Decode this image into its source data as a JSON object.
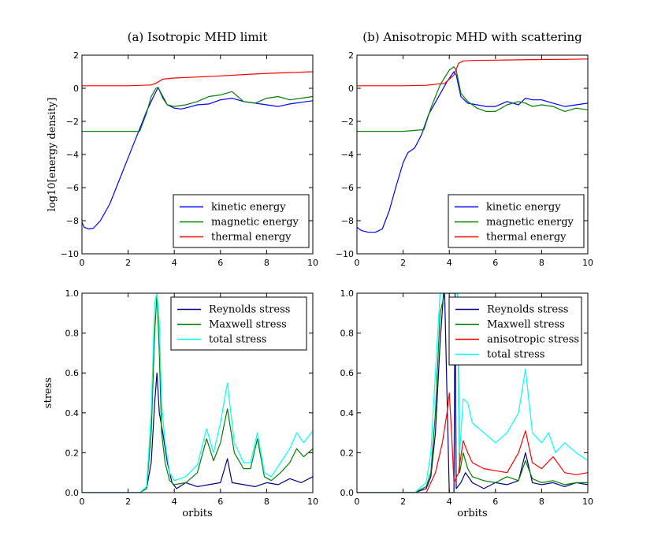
{
  "chart_data": [
    {
      "type": "line",
      "title": "(a) Isotropic MHD limit",
      "xlabel": "",
      "ylabel": "log10[energy density]",
      "xlim": [
        0,
        10
      ],
      "ylim": [
        -10,
        2
      ],
      "xticks": [
        "0",
        "2",
        "4",
        "6",
        "8",
        "10"
      ],
      "yticks": [
        "−10",
        "−8",
        "−6",
        "−4",
        "−2",
        "0",
        "2"
      ],
      "legend_position": "lower-right",
      "series": [
        {
          "name": "kinetic energy",
          "color": "#0000ff",
          "x": [
            0,
            0.1,
            0.3,
            0.5,
            0.8,
            1.2,
            1.6,
            2.0,
            2.4,
            2.8,
            3.1,
            3.3,
            3.5,
            3.7,
            4.0,
            4.3,
            4.6,
            5.0,
            5.5,
            6.0,
            6.5,
            7.0,
            7.5,
            8.0,
            8.5,
            9.0,
            9.5,
            10.0
          ],
          "y": [
            -8.1,
            -8.4,
            -8.5,
            -8.45,
            -8.0,
            -7.0,
            -5.6,
            -4.2,
            -2.8,
            -1.4,
            -0.5,
            0.05,
            -0.5,
            -1.0,
            -1.2,
            -1.25,
            -1.15,
            -1.0,
            -0.95,
            -0.7,
            -0.6,
            -0.8,
            -0.9,
            -1.0,
            -1.1,
            -0.95,
            -0.85,
            -0.75
          ]
        },
        {
          "name": "magnetic energy",
          "color": "#008000",
          "x": [
            0,
            1.0,
            2.0,
            2.5,
            2.8,
            3.0,
            3.2,
            3.3,
            3.5,
            3.7,
            4.0,
            4.5,
            5.0,
            5.5,
            6.0,
            6.5,
            7.0,
            7.5,
            8.0,
            8.5,
            9.0,
            9.5,
            10.0
          ],
          "y": [
            -2.6,
            -2.6,
            -2.6,
            -2.6,
            -1.5,
            -0.5,
            0.0,
            0.05,
            -0.6,
            -1.0,
            -1.1,
            -1.0,
            -0.8,
            -0.5,
            -0.4,
            -0.2,
            -0.8,
            -0.9,
            -0.6,
            -0.5,
            -0.7,
            -0.6,
            -0.5
          ]
        },
        {
          "name": "thermal energy",
          "color": "#ff0000",
          "x": [
            0,
            1.0,
            2.0,
            3.0,
            3.2,
            3.5,
            4.0,
            5.0,
            6.0,
            7.0,
            8.0,
            9.0,
            10.0
          ],
          "y": [
            0.15,
            0.15,
            0.15,
            0.2,
            0.3,
            0.55,
            0.62,
            0.68,
            0.75,
            0.83,
            0.9,
            0.95,
            1.0
          ]
        }
      ]
    },
    {
      "type": "line",
      "title": "(b) Anisotropic MHD with scattering",
      "xlabel": "",
      "ylabel": "",
      "xlim": [
        0,
        10
      ],
      "ylim": [
        -10,
        2
      ],
      "xticks": [
        "0",
        "2",
        "4",
        "6",
        "8",
        "10"
      ],
      "yticks": [
        "−10",
        "−8",
        "−6",
        "−4",
        "−2",
        "0",
        "2"
      ],
      "legend_position": "lower-right",
      "series": [
        {
          "name": "kinetic energy",
          "color": "#0000ff",
          "x": [
            0,
            0.2,
            0.5,
            0.8,
            1.1,
            1.4,
            1.7,
            2.0,
            2.2,
            2.5,
            2.8,
            3.1,
            3.5,
            3.9,
            4.2,
            4.3,
            4.5,
            4.8,
            5.2,
            5.6,
            6.0,
            6.5,
            7.0,
            7.3,
            7.6,
            8.0,
            8.5,
            9.0,
            9.5,
            10.0
          ],
          "y": [
            -8.4,
            -8.6,
            -8.7,
            -8.7,
            -8.5,
            -7.4,
            -5.9,
            -4.5,
            -3.9,
            -3.6,
            -2.8,
            -1.6,
            -0.6,
            0.4,
            1.0,
            0.8,
            -0.5,
            -0.9,
            -1.0,
            -1.1,
            -1.1,
            -0.8,
            -1.0,
            -0.6,
            -0.7,
            -0.7,
            -0.9,
            -1.1,
            -1.0,
            -0.9
          ]
        },
        {
          "name": "magnetic energy",
          "color": "#008000",
          "x": [
            0,
            1.0,
            2.0,
            2.9,
            3.2,
            3.6,
            4.0,
            4.2,
            4.3,
            4.5,
            4.8,
            5.2,
            5.6,
            6.0,
            6.5,
            7.0,
            7.3,
            7.6,
            8.0,
            8.5,
            9.0,
            9.5,
            10.0
          ],
          "y": [
            -2.6,
            -2.6,
            -2.6,
            -2.5,
            -1.2,
            0.2,
            1.1,
            1.3,
            1.1,
            -0.3,
            -0.8,
            -1.2,
            -1.4,
            -1.4,
            -1.0,
            -0.8,
            -0.9,
            -1.1,
            -1.0,
            -1.1,
            -1.4,
            -1.2,
            -1.3
          ]
        },
        {
          "name": "thermal energy",
          "color": "#ff0000",
          "x": [
            0,
            1.0,
            2.0,
            3.0,
            3.8,
            4.2,
            4.4,
            4.6,
            5.0,
            6.0,
            7.0,
            8.0,
            9.0,
            10.0
          ],
          "y": [
            0.15,
            0.15,
            0.15,
            0.18,
            0.3,
            0.8,
            1.5,
            1.65,
            1.68,
            1.7,
            1.72,
            1.74,
            1.75,
            1.77
          ]
        }
      ]
    },
    {
      "type": "line",
      "title": "",
      "xlabel": "orbits",
      "ylabel": "stress",
      "xlim": [
        0,
        10
      ],
      "ylim": [
        0,
        1
      ],
      "xticks": [
        "0",
        "2",
        "4",
        "6",
        "8",
        "10"
      ],
      "yticks": [
        "0.0",
        "0.2",
        "0.4",
        "0.6",
        "0.8",
        "1.0"
      ],
      "legend_position": "upper-right",
      "series": [
        {
          "name": "Reynolds stress",
          "color": "#00008b",
          "x": [
            0,
            2.5,
            2.8,
            3.0,
            3.15,
            3.25,
            3.35,
            3.5,
            3.7,
            3.9,
            4.1,
            4.5,
            5.0,
            5.5,
            6.0,
            6.3,
            6.5,
            7.0,
            7.5,
            8.0,
            8.5,
            9.0,
            9.5,
            10.0
          ],
          "y": [
            0,
            0,
            0.02,
            0.15,
            0.45,
            0.6,
            0.4,
            0.3,
            0.15,
            0.05,
            0.02,
            0.05,
            0.03,
            0.04,
            0.05,
            0.17,
            0.05,
            0.04,
            0.03,
            0.05,
            0.04,
            0.07,
            0.05,
            0.08
          ]
        },
        {
          "name": "Maxwell stress",
          "color": "#008000",
          "x": [
            0,
            2.5,
            2.8,
            3.0,
            3.15,
            3.25,
            3.35,
            3.45,
            3.6,
            3.8,
            4.0,
            4.5,
            5.0,
            5.4,
            5.7,
            6.0,
            6.3,
            6.6,
            7.0,
            7.3,
            7.6,
            7.9,
            8.2,
            8.6,
            9.0,
            9.3,
            9.6,
            10.0
          ],
          "y": [
            0,
            0,
            0.02,
            0.3,
            0.8,
            1.0,
            0.7,
            0.3,
            0.15,
            0.06,
            0.04,
            0.05,
            0.1,
            0.27,
            0.16,
            0.25,
            0.42,
            0.2,
            0.12,
            0.12,
            0.27,
            0.08,
            0.06,
            0.1,
            0.15,
            0.22,
            0.18,
            0.22
          ]
        },
        {
          "name": "total stress",
          "color": "#00ffff",
          "x": [
            0,
            2.5,
            2.8,
            3.0,
            3.15,
            3.25,
            3.35,
            3.45,
            3.6,
            3.8,
            4.0,
            4.5,
            5.0,
            5.4,
            5.7,
            6.0,
            6.3,
            6.6,
            7.0,
            7.3,
            7.6,
            7.9,
            8.2,
            8.6,
            9.0,
            9.3,
            9.6,
            10.0
          ],
          "y": [
            0,
            0,
            0.03,
            0.4,
            0.95,
            1.0,
            0.85,
            0.45,
            0.25,
            0.1,
            0.06,
            0.08,
            0.14,
            0.32,
            0.2,
            0.35,
            0.55,
            0.25,
            0.15,
            0.15,
            0.3,
            0.1,
            0.08,
            0.15,
            0.22,
            0.3,
            0.25,
            0.31
          ]
        }
      ]
    },
    {
      "type": "line",
      "title": "",
      "xlabel": "orbits",
      "ylabel": "",
      "xlim": [
        0,
        10
      ],
      "ylim": [
        0,
        1
      ],
      "xticks": [
        "0",
        "2",
        "4",
        "6",
        "8",
        "10"
      ],
      "yticks": [
        "0.0",
        "0.2",
        "0.4",
        "0.6",
        "0.8",
        "1.0"
      ],
      "legend_position": "upper-right",
      "series": [
        {
          "name": "Reynolds stress",
          "color": "#00008b",
          "x": [
            0,
            2.5,
            3.0,
            3.2,
            3.4,
            3.6,
            3.75,
            3.8,
            4.0,
            4.2,
            4.25,
            4.3,
            4.5,
            4.7,
            5.0,
            5.5,
            6.0,
            6.5,
            7.0,
            7.3,
            7.6,
            8.0,
            8.5,
            9.0,
            9.5,
            10.0
          ],
          "y": [
            0,
            0,
            0.02,
            0.08,
            0.3,
            0.75,
            1.0,
            1.0,
            0.0,
            0.0,
            1.0,
            0.02,
            0.05,
            0.1,
            0.05,
            0.02,
            0.05,
            0.04,
            0.06,
            0.2,
            0.05,
            0.04,
            0.05,
            0.03,
            0.05,
            0.04
          ]
        },
        {
          "name": "Maxwell stress",
          "color": "#008000",
          "x": [
            0,
            2.5,
            3.0,
            3.2,
            3.4,
            3.6,
            3.8,
            4.0,
            4.2,
            4.35,
            4.45,
            4.6,
            4.8,
            5.0,
            5.5,
            6.0,
            6.5,
            7.0,
            7.3,
            7.6,
            8.0,
            8.5,
            9.0,
            9.5,
            10.0
          ],
          "y": [
            0,
            0,
            0.03,
            0.1,
            0.4,
            0.9,
            1.0,
            1.0,
            1.0,
            1.0,
            0.1,
            0.2,
            0.12,
            0.08,
            0.06,
            0.05,
            0.08,
            0.06,
            0.16,
            0.07,
            0.05,
            0.06,
            0.04,
            0.05,
            0.05
          ]
        },
        {
          "name": "anisotropic stress",
          "color": "#ff0000",
          "x": [
            0,
            3.0,
            3.4,
            3.7,
            3.9,
            4.0,
            4.1,
            4.2,
            4.4,
            4.6,
            4.8,
            5.0,
            5.5,
            6.0,
            6.5,
            7.0,
            7.3,
            7.6,
            8.0,
            8.5,
            9.0,
            9.5,
            10.0
          ],
          "y": [
            0,
            0,
            0.1,
            0.25,
            0.4,
            0.5,
            0.3,
            0.05,
            0.1,
            0.26,
            0.2,
            0.15,
            0.12,
            0.11,
            0.1,
            0.2,
            0.31,
            0.15,
            0.12,
            0.18,
            0.1,
            0.09,
            0.1
          ]
        },
        {
          "name": "total stress",
          "color": "#00ffff",
          "x": [
            0,
            2.5,
            3.0,
            3.2,
            3.4,
            3.6,
            3.8,
            4.0,
            4.2,
            4.35,
            4.45,
            4.6,
            4.8,
            5.0,
            5.5,
            6.0,
            6.5,
            7.0,
            7.3,
            7.6,
            8.0,
            8.3,
            8.6,
            9.0,
            9.5,
            10.0
          ],
          "y": [
            0,
            0,
            0.05,
            0.2,
            0.6,
            1.0,
            1.0,
            1.0,
            1.0,
            1.0,
            0.2,
            0.47,
            0.45,
            0.35,
            0.3,
            0.25,
            0.3,
            0.4,
            0.62,
            0.3,
            0.25,
            0.3,
            0.2,
            0.25,
            0.2,
            0.16
          ]
        }
      ]
    }
  ]
}
